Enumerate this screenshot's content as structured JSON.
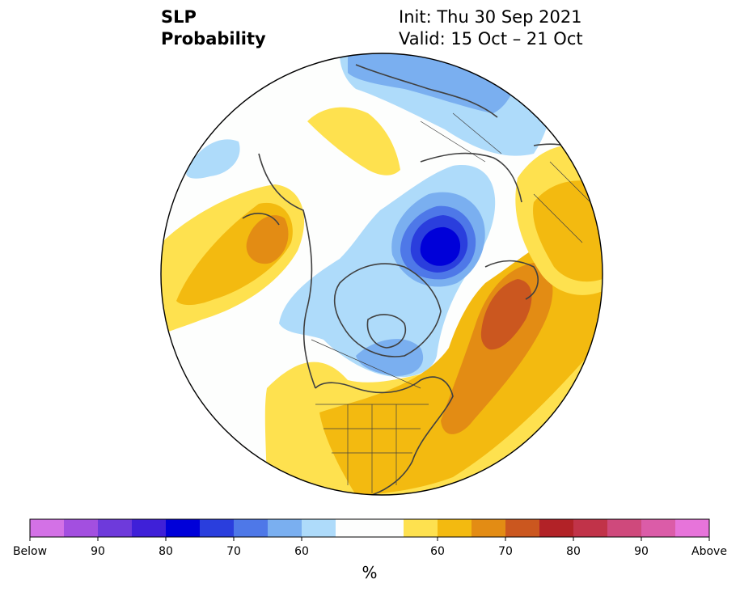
{
  "header": {
    "title_line1": "SLP",
    "title_line2": "Probability",
    "init": "Init: Thu 30 Sep 2021",
    "valid": "Valid: 15 Oct – 21 Oct"
  },
  "colorbar": {
    "unit": "%",
    "colors": [
      "#d371e6",
      "#a34fe0",
      "#6e3adb",
      "#3f20d8",
      "#0000d9",
      "#2a3edd",
      "#4e78e8",
      "#7aaff0",
      "#aedbfa",
      "#fdfefd",
      "#fdfefd",
      "#fee14f",
      "#f3ba10",
      "#e38c14",
      "#cb571f",
      "#b22227",
      "#c13349",
      "#cf497c",
      "#db5ca8",
      "#e774da"
    ],
    "labels": [
      "Below",
      "90",
      "80",
      "70",
      "60",
      "60",
      "70",
      "80",
      "90",
      "Above"
    ]
  },
  "map": {
    "projection": "north-polar-stereographic",
    "features": [
      "SLP probability shading",
      "coastlines",
      "country borders",
      "US state borders"
    ]
  }
}
